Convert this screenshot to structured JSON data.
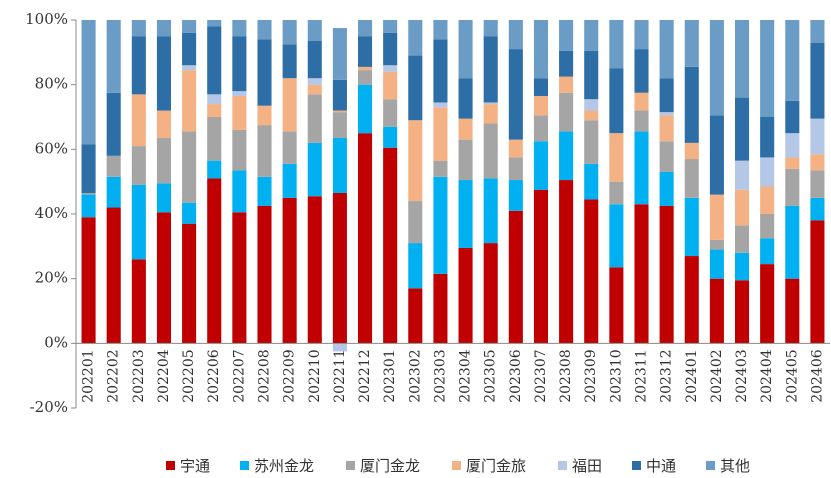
{
  "chart_data": {
    "type": "stacked_bar",
    "categories": [
      "202201",
      "202202",
      "202203",
      "202204",
      "202205",
      "202206",
      "202207",
      "202208",
      "202209",
      "202210",
      "202211",
      "202212",
      "202301",
      "202302",
      "202303",
      "202304",
      "202305",
      "202306",
      "202307",
      "202308",
      "202309",
      "202310",
      "202311",
      "202312",
      "202401",
      "202402",
      "202403",
      "202404",
      "202405",
      "202406"
    ],
    "series": [
      {
        "name": "宇通",
        "color": "#c00000",
        "values": [
          39,
          42,
          26,
          40.5,
          37,
          51,
          40.5,
          42.5,
          45,
          45.5,
          46.5,
          65,
          60.5,
          17,
          21.5,
          29.5,
          31,
          41,
          47.5,
          50.5,
          44.5,
          23.5,
          43,
          42.5,
          27,
          20,
          19.5,
          24.5,
          20,
          38
        ]
      },
      {
        "name": "苏州金龙",
        "color": "#00b0f0",
        "values": [
          7,
          9.5,
          23,
          9,
          6.5,
          5.5,
          13,
          9,
          10.5,
          16.5,
          17,
          15,
          6.5,
          14,
          30,
          21,
          20,
          9.5,
          15,
          15,
          11,
          19.5,
          22.5,
          10.5,
          18,
          9,
          8.5,
          8,
          22.5,
          7
        ]
      },
      {
        "name": "厦门金龙",
        "color": "#a5a5a5",
        "values": [
          0.5,
          6.5,
          12,
          14,
          22,
          13.5,
          12.5,
          16,
          10,
          15,
          8,
          4.5,
          8.5,
          13,
          5,
          12.5,
          17,
          7,
          8,
          12,
          13.5,
          7,
          6.5,
          9.5,
          12,
          3,
          8.5,
          7.5,
          11.5,
          8.5
        ]
      },
      {
        "name": "厦门金旅",
        "color": "#f4b183",
        "values": [
          0,
          0,
          16,
          8.5,
          19,
          4,
          10.5,
          6,
          16.5,
          3,
          0.5,
          1,
          8.5,
          25,
          16.5,
          6.5,
          6,
          5.5,
          6,
          5,
          3,
          15,
          5.5,
          8,
          5,
          14,
          11,
          8.5,
          3.5,
          5
        ]
      },
      {
        "name": "福田",
        "color": "#b4c7e7",
        "values": [
          0,
          0,
          0,
          0,
          1.5,
          3,
          1.5,
          0,
          0,
          2,
          -2.5,
          0,
          2,
          0,
          1.5,
          0,
          0.5,
          0,
          0,
          0,
          3.5,
          0,
          0,
          1,
          0,
          0,
          9,
          9,
          7.5,
          11
        ]
      },
      {
        "name": "中通",
        "color": "#2e6ea6",
        "values": [
          15,
          19.5,
          18,
          23,
          10,
          21,
          17,
          20.5,
          10.5,
          11.5,
          9.5,
          9.5,
          10,
          20,
          19.5,
          12.5,
          20.5,
          28,
          5.5,
          8,
          15,
          20,
          13.5,
          10.5,
          23.5,
          24.5,
          19.5,
          12.5,
          10,
          23.5
        ]
      },
      {
        "name": "其他",
        "color": "#6a9cc6",
        "values": [
          38.5,
          22.5,
          5,
          5,
          4,
          2,
          5,
          6,
          7.5,
          6.5,
          16,
          5,
          4,
          11,
          6,
          18,
          5,
          9,
          18,
          9.5,
          9.5,
          15,
          9,
          18,
          14.5,
          29.5,
          24,
          30,
          25,
          7
        ]
      }
    ],
    "ylim": [
      -20,
      100
    ],
    "yticks": [
      {
        "value": -20,
        "label": "-20%"
      },
      {
        "value": 0,
        "label": "0%"
      },
      {
        "value": 20,
        "label": "20%"
      },
      {
        "value": 40,
        "label": "40%"
      },
      {
        "value": 60,
        "label": "60%"
      },
      {
        "value": 80,
        "label": "80%"
      },
      {
        "value": 100,
        "label": "100%"
      }
    ],
    "legend": "bottom"
  }
}
